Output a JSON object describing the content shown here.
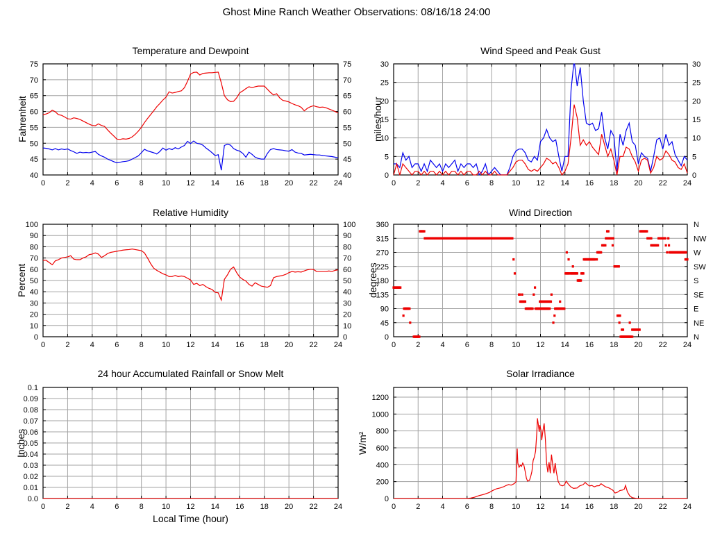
{
  "page_title": "Ghost Mine Ranch Weather Observations: 08/16/18 24:00",
  "colors": {
    "red": "#ee0000",
    "blue": "#0000ee",
    "grid": "#a3a3a3",
    "axis": "#000000",
    "background": "#ffffff"
  },
  "chart_data": [
    {
      "id": "temperature-dewpoint",
      "type": "line",
      "title": "Temperature and Dewpoint",
      "ylabel": "Fahrenheit",
      "xlim": [
        0,
        24
      ],
      "xtick_step": 2,
      "ylim": [
        40,
        75
      ],
      "ytick_step": 5,
      "right_axis": "mirror",
      "grid": true,
      "series": [
        {
          "name": "Temperature",
          "color": "red",
          "x_start": 0,
          "x_step": 0.25,
          "values": [
            59,
            59.2,
            59.6,
            60.4,
            59.9,
            59,
            58.8,
            58.3,
            57.7,
            57.6,
            58,
            57.8,
            57.5,
            57,
            56.5,
            56,
            55.6,
            55.5,
            56.1,
            55.6,
            55.3,
            54.2,
            53.2,
            52.3,
            51.3,
            51.2,
            51.4,
            51.3,
            51.5,
            52,
            52.8,
            53.8,
            55,
            56.5,
            57.8,
            59,
            60.2,
            61.5,
            62.5,
            63.6,
            64.5,
            66.2,
            65.8,
            66,
            66.3,
            66.5,
            67.5,
            69.5,
            71.8,
            72.3,
            72.4,
            71.5,
            72,
            72.1,
            72.2,
            72.2,
            72.3,
            72.4,
            69,
            65,
            63.7,
            63.1,
            63.2,
            64.3,
            65.9,
            66.5,
            67.2,
            67.8,
            67.5,
            67.8,
            68,
            68,
            68,
            67,
            66,
            65.2,
            65.6,
            64.3,
            63.5,
            63.3,
            63,
            62.5,
            62.1,
            61.8,
            61.3,
            60.2,
            61,
            61.5,
            61.8,
            61.5,
            61.3,
            61.4,
            61.2,
            60.8,
            60.4,
            60,
            59.5
          ]
        },
        {
          "name": "Dewpoint",
          "color": "blue",
          "x_start": 0,
          "x_step": 0.25,
          "values": [
            48.5,
            48.4,
            48.2,
            47.9,
            48.3,
            47.9,
            48.2,
            48,
            48.2,
            47.7,
            47.3,
            46.8,
            47.2,
            47,
            47.1,
            47,
            47.2,
            47.4,
            46.5,
            46,
            45.6,
            45,
            44.6,
            44.2,
            43.8,
            44,
            44.2,
            44.3,
            44.5,
            45,
            45.5,
            46,
            47,
            48.1,
            47.6,
            47.3,
            47,
            46.6,
            47.4,
            48.5,
            47.8,
            48.3,
            48,
            48.6,
            48.2,
            48.8,
            49.3,
            50.6,
            49.9,
            50.7,
            50,
            49.8,
            49.4,
            48.5,
            47.8,
            47,
            46.1,
            46.4,
            41.5,
            49.3,
            49.7,
            49.4,
            48.3,
            47.8,
            47.5,
            46.8,
            45.6,
            47.2,
            46.5,
            45.6,
            45.2,
            45,
            45,
            46.8,
            48,
            48.3,
            48,
            47.9,
            47.8,
            47.6,
            47.5,
            48,
            47.2,
            46.9,
            46.8,
            46.3,
            46.4,
            46.5,
            46.4,
            46.3,
            46.3,
            46.1,
            46,
            45.9,
            45.8,
            45.6,
            45.4
          ]
        }
      ]
    },
    {
      "id": "wind-speed",
      "type": "line",
      "title": "Wind Speed and Peak Gust",
      "ylabel": "miles/hour",
      "xlim": [
        0,
        24
      ],
      "xtick_step": 2,
      "ylim": [
        0,
        30
      ],
      "ytick_step": 5,
      "right_axis": "mirror",
      "grid": true,
      "series": [
        {
          "name": "Peak Gust",
          "color": "blue",
          "x_start": 0,
          "x_step": 0.25,
          "values": [
            3,
            3,
            2,
            6,
            4,
            5,
            2,
            3,
            3,
            1,
            3,
            1,
            4,
            3,
            2,
            3,
            1,
            3,
            2,
            3,
            4,
            1,
            3,
            2,
            3,
            3,
            2,
            3,
            0,
            1,
            3,
            0,
            1,
            2,
            1,
            0,
            0,
            0,
            2,
            5,
            6.5,
            7,
            7,
            6,
            4,
            3.5,
            5,
            4,
            9,
            10,
            12.3,
            10,
            9,
            9.5,
            5,
            1,
            5,
            5,
            23,
            31,
            24,
            29,
            20,
            14,
            13.5,
            14,
            12,
            12.5,
            17,
            10,
            7,
            12,
            10.5,
            1,
            11,
            8,
            12,
            14,
            9,
            8,
            3,
            6,
            5,
            4.5,
            1,
            5,
            9.5,
            10,
            7,
            11,
            8,
            9,
            5.5,
            4,
            2.5,
            5,
            4
          ]
        },
        {
          "name": "Wind Speed",
          "color": "red",
          "x_start": 0,
          "x_step": 0.25,
          "values": [
            0,
            3,
            0,
            3,
            2,
            1,
            0,
            1,
            1,
            0,
            1,
            0,
            1,
            1,
            0,
            1,
            0,
            1,
            0,
            1,
            1,
            0,
            1,
            0,
            1,
            1,
            0,
            0,
            1,
            0,
            1,
            0,
            0,
            1,
            0,
            0,
            0,
            0,
            1,
            2,
            3.5,
            4,
            4,
            3,
            1.5,
            1,
            1.5,
            1,
            2,
            3,
            4.5,
            4,
            3,
            3.5,
            2,
            0,
            1,
            3,
            10,
            19,
            15.5,
            8,
            9.5,
            8,
            9,
            7.5,
            6.5,
            5.5,
            11,
            8,
            5,
            7,
            4,
            0,
            5,
            5,
            7.5,
            7,
            5,
            3.5,
            1,
            4,
            4.5,
            4,
            0.5,
            2,
            5,
            4,
            4.5,
            6.5,
            5.5,
            4,
            3.5,
            2,
            1.5,
            3,
            0.5
          ]
        }
      ]
    },
    {
      "id": "relative-humidity",
      "type": "line",
      "title": "Relative Humidity",
      "ylabel": "Percent",
      "xlim": [
        0,
        24
      ],
      "xtick_step": 2,
      "ylim": [
        0,
        100
      ],
      "ytick_step": 10,
      "right_axis": "mirror",
      "grid": true,
      "series": [
        {
          "name": "Relative Humidity",
          "color": "red",
          "x_start": 0,
          "x_step": 0.25,
          "values": [
            68,
            68,
            66,
            64,
            67.5,
            68.5,
            70,
            70.5,
            71,
            72,
            69,
            68.5,
            68.5,
            70,
            71,
            73,
            73.5,
            74.5,
            73.5,
            70.5,
            72,
            74,
            75,
            75.5,
            76,
            76.5,
            77,
            77.3,
            77.5,
            78,
            77.5,
            77,
            76.5,
            74.5,
            70,
            65,
            61,
            59,
            57.5,
            56,
            55,
            53.5,
            53.5,
            54.5,
            53.5,
            54,
            53.5,
            52,
            50.5,
            46.5,
            47.5,
            45.5,
            46.5,
            44.5,
            43,
            42,
            39.5,
            39,
            32.5,
            51,
            55,
            60,
            62,
            57,
            53,
            51,
            49.5,
            46.5,
            45,
            48,
            46.5,
            45,
            44.5,
            44,
            45.5,
            52.5,
            53.5,
            54,
            54.5,
            55.5,
            57,
            58,
            57.5,
            57.8,
            57.5,
            58.5,
            59.5,
            60,
            59.8,
            58,
            58,
            58,
            58,
            58.5,
            58,
            59,
            59.5
          ]
        }
      ]
    },
    {
      "id": "wind-direction",
      "type": "scatter",
      "title": "Wind Direction",
      "ylabel": "degrees",
      "xlim": [
        0,
        24
      ],
      "xtick_step": 2,
      "ylim": [
        0,
        360
      ],
      "ytick_step": 45,
      "right_axis": "compass",
      "compass_labels": [
        "N",
        "NE",
        "E",
        "SE",
        "S",
        "SW",
        "W",
        "NW",
        "N"
      ],
      "grid": true,
      "dot_color": "red",
      "dot_interval": 0.05,
      "segments": [
        [
          0,
          0.55,
          157.5
        ],
        [
          0.8,
          0.8,
          67.5
        ],
        [
          0.85,
          1.3,
          90
        ],
        [
          1.35,
          1.35,
          45
        ],
        [
          1.65,
          2.1,
          0
        ],
        [
          2.15,
          2.5,
          337.5
        ],
        [
          2.55,
          9.7,
          315
        ],
        [
          9.8,
          9.8,
          247.5
        ],
        [
          9.9,
          9.9,
          202.5
        ],
        [
          10.25,
          10.3,
          135
        ],
        [
          10.5,
          10.5,
          135
        ],
        [
          10.35,
          10.75,
          112.5
        ],
        [
          10.8,
          11.35,
          90
        ],
        [
          11.45,
          11.45,
          135
        ],
        [
          11.55,
          11.55,
          157.5
        ],
        [
          11.6,
          12.15,
          90
        ],
        [
          11.95,
          12.85,
          112.5
        ],
        [
          12.2,
          12.75,
          90
        ],
        [
          12.9,
          12.9,
          135
        ],
        [
          13.05,
          13.05,
          45
        ],
        [
          13.15,
          13.15,
          67.5
        ],
        [
          13.2,
          13.95,
          90
        ],
        [
          13.6,
          13.6,
          112.5
        ],
        [
          14.05,
          14.35,
          202.5
        ],
        [
          14.15,
          14.15,
          270
        ],
        [
          14.3,
          14.3,
          247.5
        ],
        [
          14.45,
          15,
          202.5
        ],
        [
          14.65,
          14.65,
          225
        ],
        [
          15.05,
          15.3,
          180
        ],
        [
          15.35,
          15.5,
          202.5
        ],
        [
          15.55,
          16.45,
          247.5
        ],
        [
          16.6,
          16.6,
          247.5
        ],
        [
          16.65,
          16.95,
          270
        ],
        [
          17.05,
          17.3,
          292.5
        ],
        [
          17.35,
          17.6,
          315
        ],
        [
          17.45,
          17.55,
          337.5
        ],
        [
          17.7,
          17.95,
          315
        ],
        [
          17.9,
          17.9,
          292.5
        ],
        [
          18.05,
          18.4,
          225
        ],
        [
          18.3,
          18.5,
          67.5
        ],
        [
          18.45,
          18.45,
          45
        ],
        [
          18.65,
          18.75,
          22.5
        ],
        [
          18.55,
          19.4,
          0
        ],
        [
          19.3,
          19.3,
          45
        ],
        [
          19.5,
          19.5,
          0
        ],
        [
          19.5,
          20.1,
          22.5
        ],
        [
          20.15,
          20.7,
          337.5
        ],
        [
          20.75,
          21.05,
          315
        ],
        [
          21.05,
          21.6,
          292.5
        ],
        [
          21.65,
          22.2,
          315
        ],
        [
          22.25,
          22.25,
          292.5
        ],
        [
          22.35,
          22.35,
          270
        ],
        [
          22.45,
          22.45,
          315
        ],
        [
          22.5,
          22.5,
          292.5
        ],
        [
          22.55,
          23.9,
          270
        ],
        [
          23.85,
          24,
          247.5
        ]
      ]
    },
    {
      "id": "rainfall",
      "type": "line",
      "title": "24 hour Accumulated Rainfall or Snow Melt",
      "ylabel": "Inches",
      "xlabel": "Local Time (hour)",
      "xlim": [
        0,
        24
      ],
      "xtick_step": 2,
      "ylim": [
        0,
        0.1
      ],
      "yticks": [
        0,
        0.01,
        0.02,
        0.03,
        0.04,
        0.05,
        0.06,
        0.07,
        0.08,
        0.09,
        0.1
      ],
      "ytick_labels": [
        "0.0",
        "0.01",
        "0.02",
        "0.03",
        "0.04",
        "0.05",
        "0.06",
        "0.07",
        "0.08",
        "0.09",
        "0.1"
      ],
      "right_axis": "none",
      "grid": true,
      "series": [
        {
          "name": "Accumulated Rainfall",
          "color": "red",
          "x": [
            0,
            24
          ],
          "values": [
            0,
            0
          ]
        }
      ]
    },
    {
      "id": "solar-irradiance",
      "type": "line",
      "title": "Solar Irradiance",
      "ylabel": "W/m²",
      "xlim": [
        0,
        24
      ],
      "xtick_step": 2,
      "ylim": [
        0,
        1315
      ],
      "yticks": [
        0,
        200,
        400,
        600,
        800,
        1000,
        1200
      ],
      "right_axis": "none",
      "grid": true,
      "series": [
        {
          "name": "Solar Irradiance",
          "color": "red",
          "x": [
            0,
            6,
            6.3,
            6.6,
            7,
            7.4,
            7.8,
            8.1,
            8.4,
            8.7,
            9,
            9.2,
            9.4,
            9.6,
            9.8,
            10,
            10.05,
            10.1,
            10.15,
            10.25,
            10.35,
            10.45,
            10.55,
            10.65,
            10.75,
            10.85,
            10.95,
            11.1,
            11.2,
            11.3,
            11.4,
            11.5,
            11.6,
            11.7,
            11.75,
            11.8,
            11.9,
            11.95,
            12.05,
            12.1,
            12.2,
            12.3,
            12.4,
            12.5,
            12.6,
            12.7,
            12.8,
            12.9,
            13,
            13.1,
            13.2,
            13.3,
            13.45,
            13.6,
            13.8,
            13.95,
            14.1,
            14.3,
            14.5,
            14.7,
            15,
            15.2,
            15.5,
            15.65,
            15.8,
            16,
            16.2,
            16.4,
            16.6,
            16.8,
            16.95,
            17.1,
            17.3,
            17.6,
            17.9,
            18.1,
            18.3,
            18.5,
            18.7,
            18.85,
            18.95,
            19.1,
            19.3,
            19.5,
            19.8,
            20,
            24
          ],
          "values": [
            0,
            0,
            5,
            15,
            35,
            50,
            70,
            95,
            115,
            125,
            140,
            155,
            165,
            158,
            172,
            195,
            400,
            590,
            420,
            370,
            395,
            380,
            420,
            390,
            320,
            240,
            205,
            215,
            260,
            320,
            450,
            490,
            560,
            780,
            950,
            900,
            790,
            870,
            800,
            690,
            800,
            890,
            700,
            420,
            310,
            430,
            300,
            520,
            400,
            300,
            420,
            310,
            200,
            160,
            150,
            160,
            205,
            165,
            135,
            120,
            125,
            150,
            165,
            190,
            170,
            148,
            155,
            138,
            150,
            152,
            175,
            160,
            140,
            125,
            100,
            65,
            75,
            95,
            100,
            110,
            155,
            80,
            30,
            10,
            2,
            0,
            0
          ]
        }
      ]
    }
  ]
}
